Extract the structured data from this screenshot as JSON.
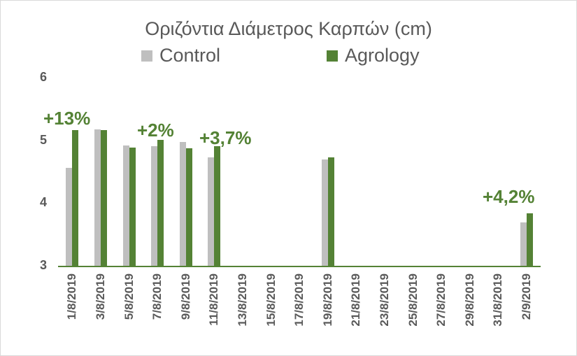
{
  "chart_data": {
    "type": "bar",
    "title": "Οριζόντια Διάμετρος Καρπών (cm)",
    "xlabel": "",
    "ylabel": "",
    "ylim": [
      3,
      6
    ],
    "yticks": [
      "3",
      "4",
      "5",
      "6"
    ],
    "grid": false,
    "legend_position": "top",
    "categories": [
      "1/8/2019",
      "3/8/2019",
      "5/8/2019",
      "7/8/2019",
      "9/8/2019",
      "11/8/2019",
      "13/8/2019",
      "15/8/2019",
      "17/8/2019",
      "19/8/2019",
      "21/8/2019",
      "23/8/2019",
      "25/8/2019",
      "27/8/2019",
      "29/8/2019",
      "31/8/2019",
      "2/9/2019"
    ],
    "series": [
      {
        "name": "Control",
        "color": "#bfbfbf",
        "values": [
          4.57,
          5.18,
          4.93,
          4.92,
          4.98,
          4.74,
          null,
          null,
          null,
          4.71,
          null,
          null,
          null,
          null,
          null,
          null,
          3.7
        ]
      },
      {
        "name": "Agrology",
        "color": "#548235",
        "values": [
          5.17,
          5.17,
          4.9,
          5.02,
          4.88,
          4.92,
          null,
          null,
          null,
          4.74,
          null,
          null,
          null,
          null,
          null,
          null,
          3.85
        ]
      }
    ],
    "annotations": [
      {
        "text": "+13%",
        "category": "1/8/2019"
      },
      {
        "text": "+2%",
        "category": "7/8/2019"
      },
      {
        "text": "+3,7%",
        "category": "11/8/2019"
      },
      {
        "text": "+4,2%",
        "category": "2/9/2019"
      }
    ]
  }
}
